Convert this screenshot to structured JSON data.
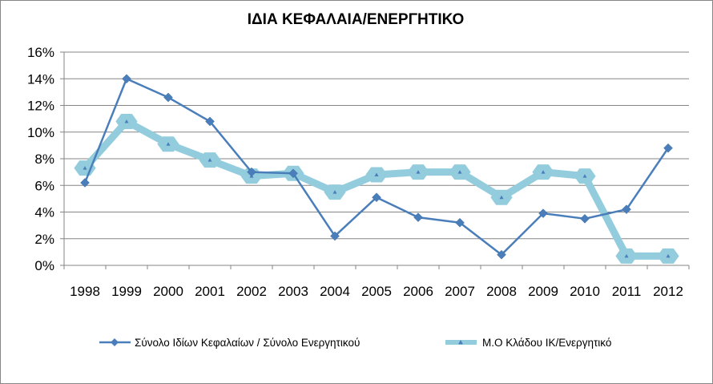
{
  "chart_data": {
    "type": "line",
    "title": "ΙΔΙΑ ΚΕΦΑΛΑΙΑ/ΕΝΕΡΓΗΤΙΚΟ",
    "xlabel": "",
    "ylabel": "",
    "ylim": [
      0,
      16
    ],
    "yticks": [
      "0%",
      "2%",
      "4%",
      "6%",
      "8%",
      "10%",
      "12%",
      "14%",
      "16%"
    ],
    "categories": [
      "1998",
      "1999",
      "2000",
      "2001",
      "2002",
      "2003",
      "2004",
      "2005",
      "2006",
      "2007",
      "2008",
      "2009",
      "2010",
      "2011",
      "2012"
    ],
    "legend_position": "bottom",
    "grid": true,
    "series": [
      {
        "name": "Σύνολο Ιδίων Κεφαλαίων / Σύνολο Ενεργητικού",
        "color": "#4a7ebb",
        "marker": "diamond",
        "values": [
          6.2,
          14.0,
          12.6,
          10.8,
          7.0,
          6.9,
          2.2,
          5.1,
          3.6,
          3.2,
          0.8,
          3.9,
          3.5,
          4.2,
          8.8
        ]
      },
      {
        "name": "Μ.Ο Κλάδου ΙΚ/Ενεργητικό",
        "color": "#93cddd",
        "marker": "triangle",
        "values": [
          7.3,
          10.8,
          9.1,
          7.9,
          6.7,
          6.9,
          5.5,
          6.8,
          7.0,
          7.0,
          5.1,
          7.0,
          6.7,
          0.7,
          0.7
        ]
      }
    ]
  }
}
